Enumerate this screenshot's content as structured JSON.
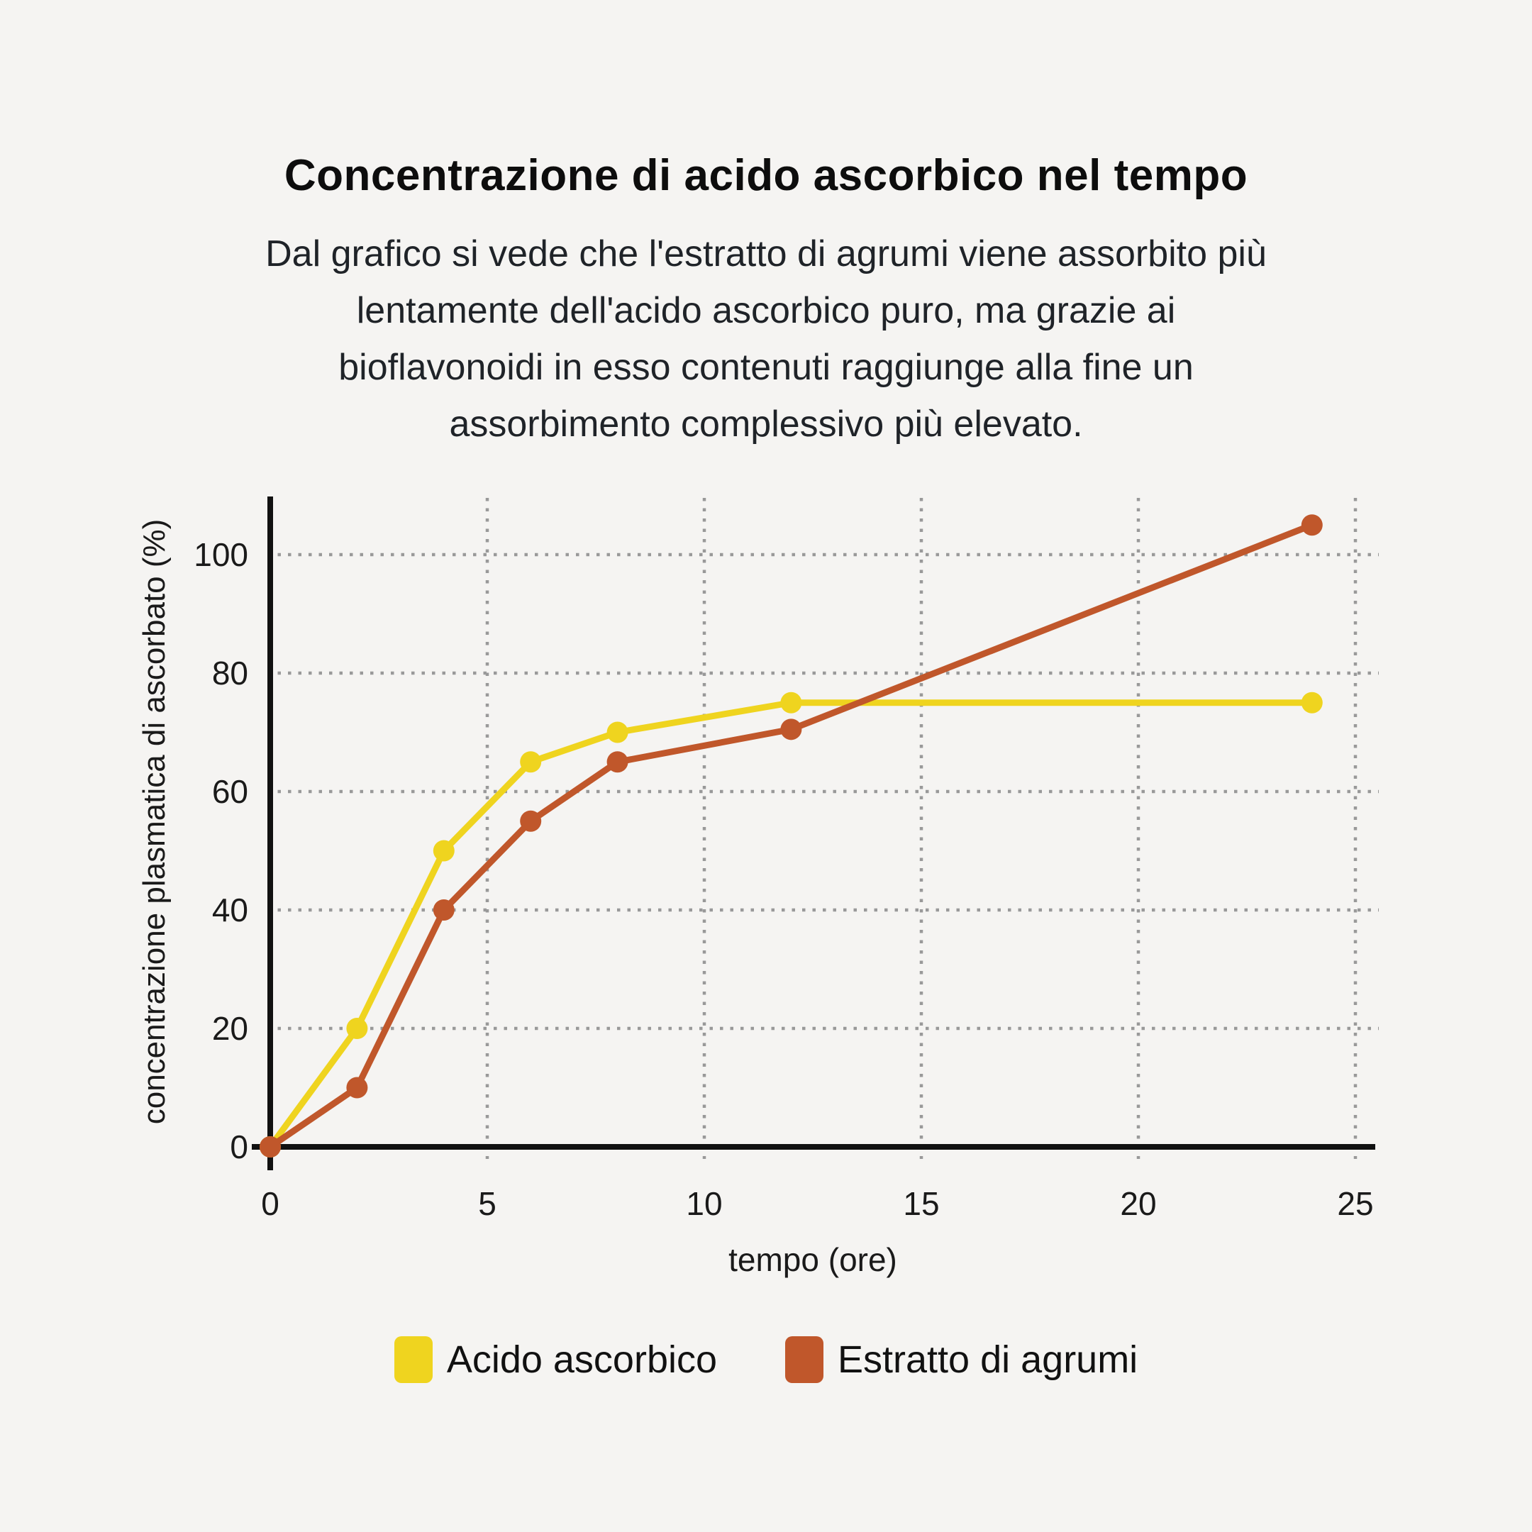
{
  "header": {
    "title": "Concentrazione di acido ascorbico nel tempo",
    "subtitle_lines": [
      "Dal grafico si vede che l'estratto di agrumi viene assorbito più",
      "lentamente dell'acido ascorbico puro, ma grazie ai",
      "bioflavonoidi in esso contenuti raggiunge alla fine un",
      "assorbimento complessivo più elevato."
    ]
  },
  "chart_data": {
    "type": "line",
    "title": "Concentrazione di acido ascorbico nel tempo",
    "x": [
      0,
      2,
      4,
      6,
      8,
      12,
      24
    ],
    "series": [
      {
        "name": "Acido ascorbico",
        "color": "#EFD41F",
        "values": [
          0,
          20,
          50,
          65,
          70,
          75,
          75
        ]
      },
      {
        "name": "Estratto di agrumi",
        "color": "#C0572B",
        "values": [
          0,
          10,
          40,
          55,
          65,
          70.5,
          105
        ]
      }
    ],
    "xlabel": "tempo (ore)",
    "ylabel": "concentrazione plasmatica di ascorbato (%)",
    "xticks": [
      0,
      5,
      10,
      15,
      20,
      25
    ],
    "yticks": [
      0,
      20,
      40,
      60,
      80,
      100
    ],
    "xlim": [
      0,
      25.5
    ],
    "ylim": [
      0,
      110
    ],
    "grid": "dotted",
    "legend_position": "bottom",
    "marker": "circle"
  },
  "theme": {
    "background": "#F5F4F2",
    "axis_color": "#111111",
    "grid_color": "#999999",
    "text_color": "#1a1a1a"
  }
}
